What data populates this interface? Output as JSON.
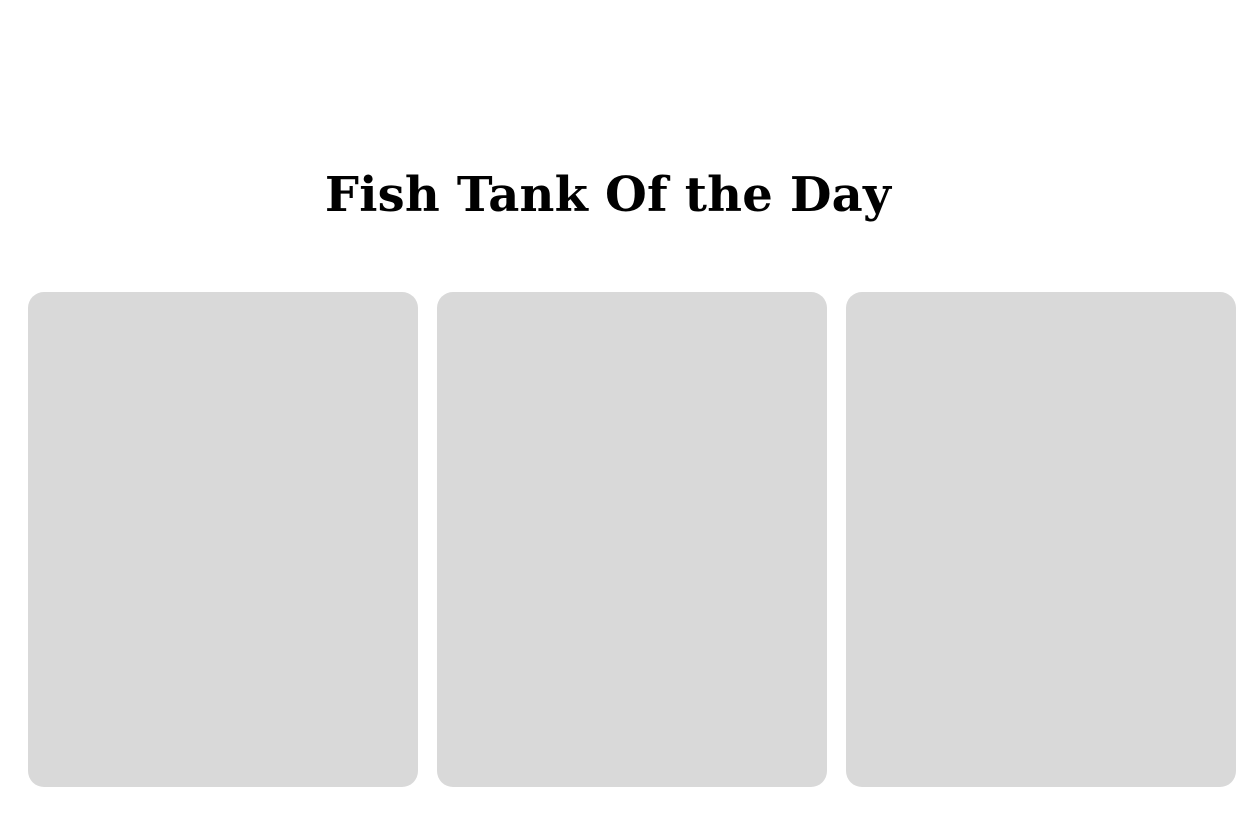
{
  "section": {
    "title": "Fish Tank Of the Day"
  },
  "cards": [
    {
      "placeholder_color": "#d9d9d9"
    },
    {
      "placeholder_color": "#d9d9d9"
    },
    {
      "placeholder_color": "#d9d9d9"
    }
  ]
}
